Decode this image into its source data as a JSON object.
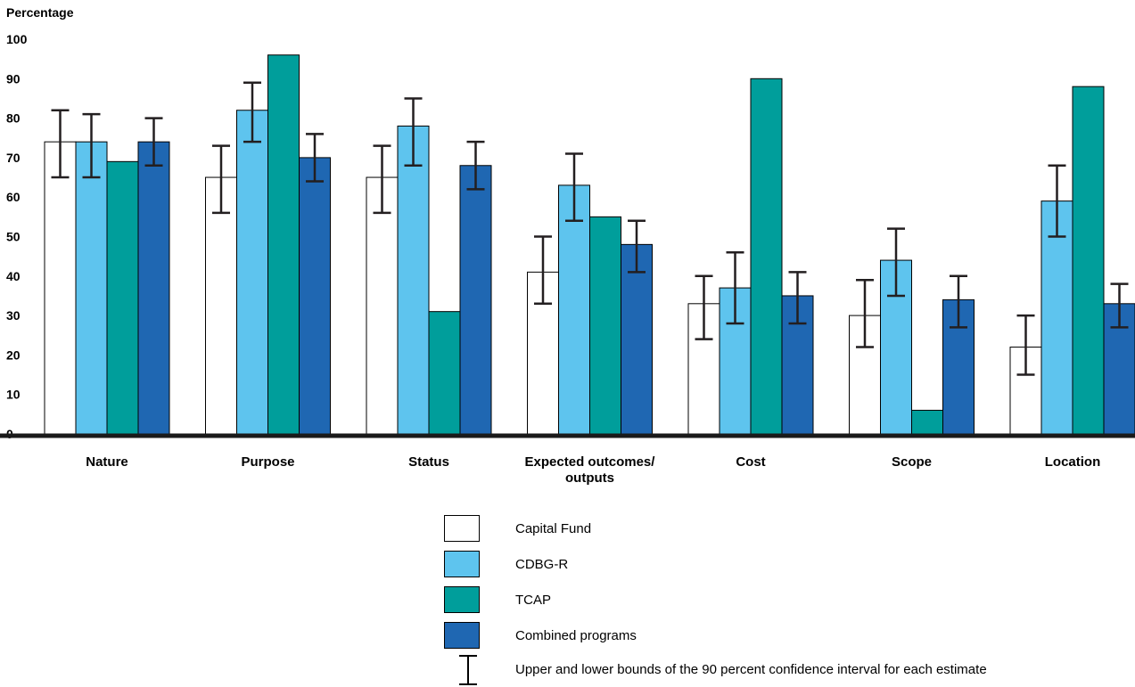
{
  "chart_data": {
    "type": "bar",
    "ylabel": "Percentage",
    "ylim": [
      0,
      100
    ],
    "yticks": [
      0,
      10,
      20,
      30,
      40,
      50,
      60,
      70,
      80,
      90,
      100
    ],
    "grid": false,
    "legend_position": "bottom-center",
    "categories": [
      "Nature",
      "Purpose",
      "Status",
      "Expected outcomes/\noutputs",
      "Cost",
      "Scope",
      "Location"
    ],
    "series": [
      {
        "name": "Capital Fund",
        "color": "#ffffff",
        "values": [
          74,
          65,
          65,
          41,
          33,
          30,
          22
        ],
        "ci_low": [
          65,
          56,
          56,
          33,
          24,
          22,
          15
        ],
        "ci_high": [
          82,
          73,
          73,
          50,
          40,
          39,
          30
        ]
      },
      {
        "name": "CDBG-R",
        "color": "#5ec4ee",
        "values": [
          74,
          82,
          78,
          63,
          37,
          44,
          59
        ],
        "ci_low": [
          65,
          74,
          68,
          54,
          28,
          35,
          50
        ],
        "ci_high": [
          81,
          89,
          85,
          71,
          46,
          52,
          68
        ]
      },
      {
        "name": "TCAP",
        "color": "#009e9b",
        "values": [
          69,
          96,
          31,
          55,
          90,
          6,
          88
        ]
      },
      {
        "name": "Combined programs",
        "color": "#1f67b2",
        "values": [
          74,
          70,
          68,
          48,
          35,
          34,
          33
        ],
        "ci_low": [
          68,
          64,
          62,
          41,
          28,
          27,
          27
        ],
        "ci_high": [
          80,
          76,
          74,
          54,
          41,
          40,
          38
        ]
      }
    ],
    "ci_legend_label": "Upper and lower bounds of the 90 percent confidence interval for each estimate"
  }
}
